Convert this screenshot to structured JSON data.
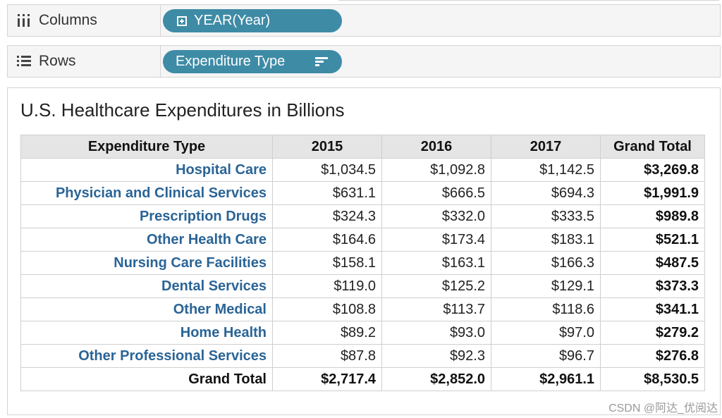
{
  "shelves": {
    "columns": {
      "label": "Columns",
      "pill": "YEAR(Year)"
    },
    "rows": {
      "label": "Rows",
      "pill": "Expenditure Type"
    }
  },
  "view": {
    "title": "U.S. Healthcare Expenditures in Billions",
    "headers": [
      "Expenditure Type",
      "2015",
      "2016",
      "2017",
      "Grand Total"
    ],
    "rows": [
      {
        "label": "Hospital Care",
        "values": [
          "$1,034.5",
          "$1,092.8",
          "$1,142.5"
        ],
        "total": "$3,269.8"
      },
      {
        "label": "Physician and Clinical Services",
        "values": [
          "$631.1",
          "$666.5",
          "$694.3"
        ],
        "total": "$1,991.9"
      },
      {
        "label": "Prescription Drugs",
        "values": [
          "$324.3",
          "$332.0",
          "$333.5"
        ],
        "total": "$989.8"
      },
      {
        "label": "Other Health Care",
        "values": [
          "$164.6",
          "$173.4",
          "$183.1"
        ],
        "total": "$521.1"
      },
      {
        "label": "Nursing Care Facilities",
        "values": [
          "$158.1",
          "$163.1",
          "$166.3"
        ],
        "total": "$487.5"
      },
      {
        "label": "Dental Services",
        "values": [
          "$119.0",
          "$125.2",
          "$129.1"
        ],
        "total": "$373.3"
      },
      {
        "label": "Other Medical",
        "values": [
          "$108.8",
          "$113.7",
          "$118.6"
        ],
        "total": "$341.1"
      },
      {
        "label": "Home Health",
        "values": [
          "$89.2",
          "$93.0",
          "$97.0"
        ],
        "total": "$279.2"
      },
      {
        "label": "Other Professional Services",
        "values": [
          "$87.8",
          "$92.3",
          "$96.7"
        ],
        "total": "$276.8"
      }
    ],
    "grand_total": {
      "label": "Grand Total",
      "values": [
        "$2,717.4",
        "$2,852.0",
        "$2,961.1"
      ],
      "total": "$8,530.5"
    }
  },
  "watermark": "CSDN @阿达_优阅达",
  "colors": {
    "pill": "#3e8ba6",
    "row_label": "#2a6496",
    "header_bg": "#e5e5e5"
  }
}
